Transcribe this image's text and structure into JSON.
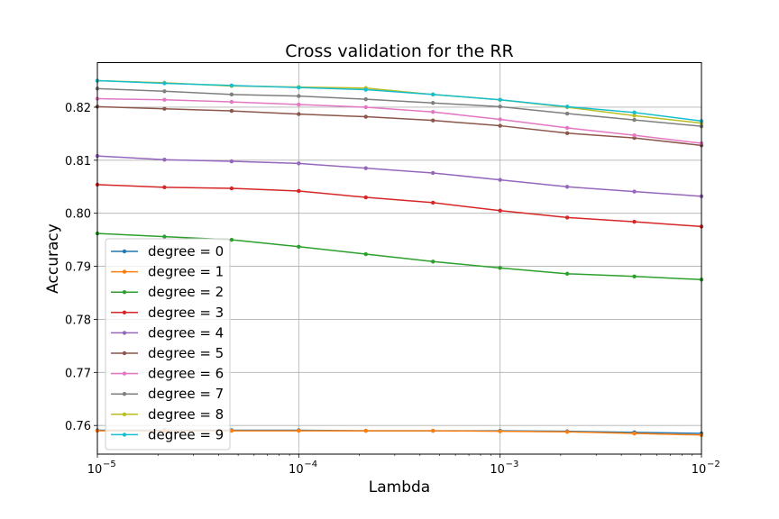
{
  "chart_data": {
    "type": "line",
    "title": "Cross validation for the RR",
    "xlabel": "Lambda",
    "ylabel": "Accuracy",
    "xscale": "log",
    "xlim": [
      1e-05,
      0.01
    ],
    "ylim": [
      0.7546,
      0.8284
    ],
    "grid": true,
    "legend_position": "lower-left",
    "x": [
      1e-05,
      2.154e-05,
      4.642e-05,
      0.0001,
      0.0002154,
      0.0004642,
      0.001,
      0.002154,
      0.004642,
      0.01
    ],
    "xticks": [
      {
        "value": 1e-05,
        "base": "10",
        "exp": "−5"
      },
      {
        "value": 0.0001,
        "base": "10",
        "exp": "−4"
      },
      {
        "value": 0.001,
        "base": "10",
        "exp": "−3"
      },
      {
        "value": 0.01,
        "base": "10",
        "exp": "−2"
      }
    ],
    "yticks": [
      {
        "value": 0.76,
        "label": "0.76"
      },
      {
        "value": 0.77,
        "label": "0.77"
      },
      {
        "value": 0.78,
        "label": "0.78"
      },
      {
        "value": 0.79,
        "label": "0.79"
      },
      {
        "value": 0.8,
        "label": "0.80"
      },
      {
        "value": 0.81,
        "label": "0.81"
      },
      {
        "value": 0.82,
        "label": "0.82"
      }
    ],
    "series": [
      {
        "name": "degree = 0",
        "color": "#1f77b4",
        "values": [
          0.7591,
          0.7591,
          0.7591,
          0.7591,
          0.759,
          0.759,
          0.759,
          0.7589,
          0.7587,
          0.7585
        ]
      },
      {
        "name": "degree = 1",
        "color": "#ff7f0e",
        "values": [
          0.759,
          0.759,
          0.759,
          0.759,
          0.759,
          0.759,
          0.7589,
          0.7588,
          0.7585,
          0.7582
        ]
      },
      {
        "name": "degree = 2",
        "color": "#2ca02c",
        "values": [
          0.7962,
          0.7956,
          0.795,
          0.7937,
          0.7923,
          0.7909,
          0.7897,
          0.7886,
          0.7881,
          0.7875
        ]
      },
      {
        "name": "degree = 3",
        "color": "#d62728",
        "values": [
          0.8054,
          0.8049,
          0.8047,
          0.8042,
          0.803,
          0.802,
          0.8005,
          0.7992,
          0.7984,
          0.7975
        ]
      },
      {
        "name": "degree = 4",
        "color": "#9467bd",
        "values": [
          0.8108,
          0.8101,
          0.8098,
          0.8094,
          0.8085,
          0.8076,
          0.8063,
          0.805,
          0.8041,
          0.8032
        ]
      },
      {
        "name": "degree = 5",
        "color": "#8c564b",
        "values": [
          0.8201,
          0.8197,
          0.8193,
          0.8187,
          0.8182,
          0.8175,
          0.8165,
          0.8151,
          0.8142,
          0.8128
        ]
      },
      {
        "name": "degree = 6",
        "color": "#e377c2",
        "values": [
          0.8216,
          0.8214,
          0.821,
          0.8205,
          0.82,
          0.8191,
          0.8177,
          0.8161,
          0.8147,
          0.8132
        ]
      },
      {
        "name": "degree = 7",
        "color": "#7f7f7f",
        "values": [
          0.8235,
          0.823,
          0.8224,
          0.8221,
          0.8215,
          0.8208,
          0.8201,
          0.8188,
          0.8176,
          0.8164
        ]
      },
      {
        "name": "degree = 8",
        "color": "#bcbd22",
        "values": [
          0.825,
          0.8246,
          0.824,
          0.8238,
          0.8236,
          0.8224,
          0.8214,
          0.82,
          0.8184,
          0.817
        ]
      },
      {
        "name": "degree = 9",
        "color": "#17becf",
        "values": [
          0.825,
          0.8245,
          0.8241,
          0.8237,
          0.8233,
          0.8224,
          0.8214,
          0.8201,
          0.819,
          0.8174
        ]
      }
    ]
  }
}
